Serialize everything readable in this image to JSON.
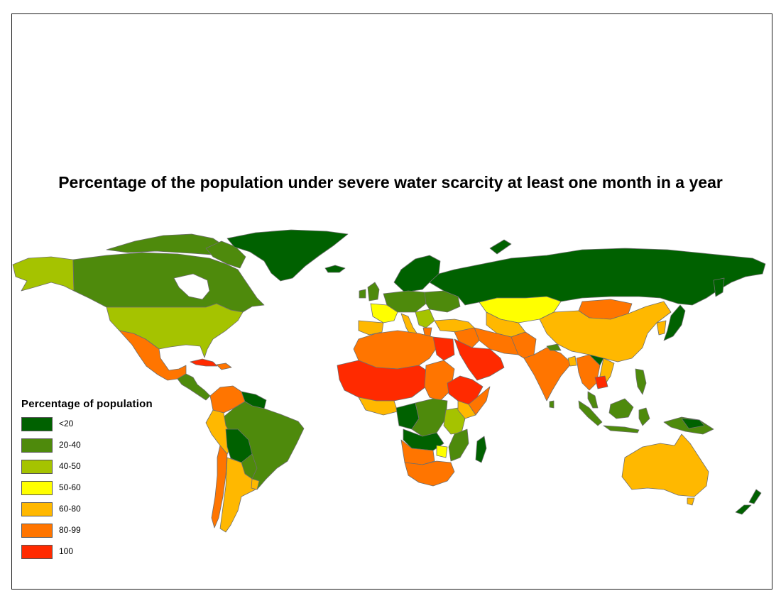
{
  "title": "Percentage of the population under severe water scarcity at least one month in a year",
  "legend": {
    "title": "Percentage of population",
    "items": [
      {
        "label": "<20",
        "color": "#006100"
      },
      {
        "label": "20-40",
        "color": "#4e8a0c"
      },
      {
        "label": "40-50",
        "color": "#a5c300"
      },
      {
        "label": "50-60",
        "color": "#ffff00"
      },
      {
        "label": "60-80",
        "color": "#ffb800"
      },
      {
        "label": "80-99",
        "color": "#ff7500"
      },
      {
        "label": "100",
        "color": "#ff2a00"
      }
    ]
  },
  "colors": {
    "country_border": "#6e6e6e",
    "frame": "#1a1a1a",
    "background": "#ffffff"
  }
}
